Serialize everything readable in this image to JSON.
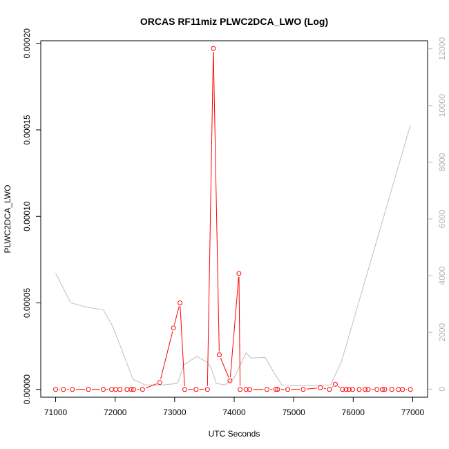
{
  "chart_data": {
    "type": "line",
    "title": "ORCAS RF11miz PLWC2DCA_LWO (Log)",
    "xlabel": "UTC Seconds",
    "ylabel": "PLWC2DCA_LWO",
    "xlim": [
      70750,
      77250
    ],
    "ylim": [
      -4.5e-06,
      0.0002015
    ],
    "y2lim": [
      -284,
      12284
    ],
    "xticks": [
      "71000",
      "72000",
      "73000",
      "74000",
      "75000",
      "76000",
      "77000"
    ],
    "xtick_values": [
      71000,
      72000,
      73000,
      74000,
      75000,
      76000,
      77000
    ],
    "yticks": [
      "0.00000",
      "0.00005",
      "0.00010",
      "0.00015",
      "0.00020"
    ],
    "ytick_values": [
      0,
      5e-05,
      0.0001,
      0.00015,
      0.0002
    ],
    "y2ticks": [
      "0",
      "2000",
      "4000",
      "6000",
      "8000",
      "10000",
      "12000"
    ],
    "y2tick_values": [
      0,
      2000,
      4000,
      6000,
      8000,
      10000,
      12000
    ],
    "colors": {
      "primary": "#ff0000",
      "secondary": "#bebebe",
      "axis": "#000000",
      "right_axis": "#b5b5b5"
    },
    "grid": false,
    "series": [
      {
        "axis": "left",
        "style": "points-and-lines",
        "x": [
          71000,
          71130,
          71280,
          71550,
          71800,
          71940,
          72010,
          72080,
          72200,
          72270,
          72310,
          72460,
          72750,
          72980,
          73090,
          73170,
          73360,
          73550,
          73650,
          73750,
          73930,
          74080,
          74100,
          74200,
          74260,
          74550,
          74700,
          74730,
          74900,
          75160,
          75450,
          75600,
          75700,
          75820,
          75880,
          75930,
          75990,
          76100,
          76200,
          76250,
          76400,
          76490,
          76530,
          76650,
          76760,
          76830,
          76960
        ],
        "y": [
          0,
          0,
          0,
          0,
          0,
          0,
          0,
          0,
          0,
          0,
          0,
          0,
          4e-06,
          3.55e-05,
          5e-05,
          0,
          0,
          0,
          0.000197,
          2e-05,
          5e-06,
          6.7e-05,
          0,
          0,
          0,
          0,
          0,
          0,
          0,
          0,
          1e-06,
          0,
          3e-06,
          0,
          0,
          0,
          0,
          0,
          0,
          0,
          0,
          0,
          0,
          0,
          0,
          0,
          0
        ]
      },
      {
        "axis": "right",
        "style": "line",
        "x": [
          71000,
          71250,
          71500,
          71800,
          71950,
          72100,
          72300,
          72500,
          72800,
          73050,
          73150,
          73370,
          73550,
          73620,
          73700,
          73850,
          74000,
          74200,
          74280,
          74520,
          74650,
          74800,
          75000,
          75300,
          75620,
          75800,
          76960
        ],
        "y": [
          4100,
          3050,
          2900,
          2800,
          2250,
          1450,
          350,
          150,
          150,
          200,
          850,
          1150,
          950,
          700,
          200,
          150,
          400,
          1280,
          1100,
          1120,
          650,
          150,
          120,
          120,
          150,
          950,
          9300
        ]
      }
    ]
  }
}
